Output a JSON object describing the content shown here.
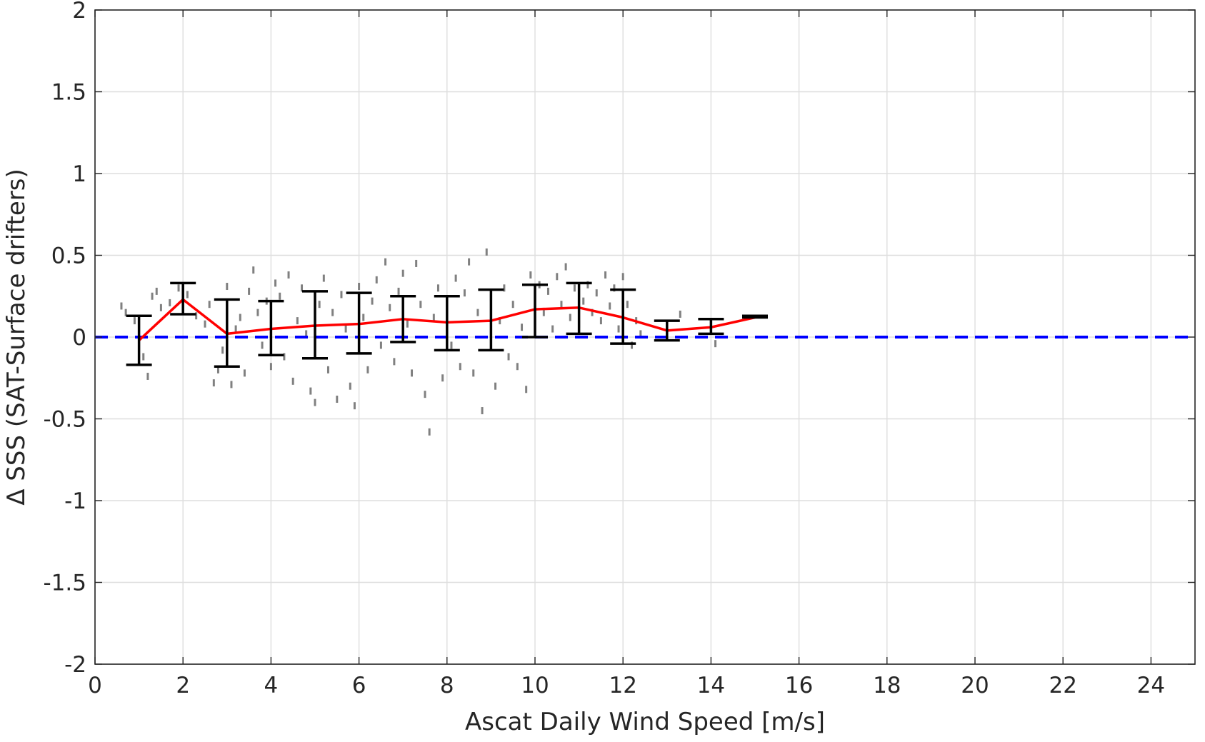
{
  "chart_data": {
    "type": "scatter",
    "title": "",
    "xlabel": "Ascat Daily Wind Speed [m/s]",
    "ylabel": "Δ SSS (SAT-Surface drifters)",
    "xlim": [
      0,
      25
    ],
    "ylim": [
      -2,
      2
    ],
    "x_ticks": [
      0,
      2,
      4,
      6,
      8,
      10,
      12,
      14,
      16,
      18,
      20,
      22,
      24
    ],
    "y_ticks": [
      -2,
      -1.5,
      -1,
      -0.5,
      0,
      0.5,
      1,
      1.5,
      2
    ],
    "y_tick_labels": [
      "-2",
      "-1.5",
      "-1",
      "-0.5",
      "0",
      "0.5",
      "1",
      "1.5",
      "2"
    ],
    "grid": true,
    "legend": "none",
    "reference_line": {
      "y": 0,
      "style": "dashed",
      "color": "#0000ff"
    },
    "binned_mean": {
      "color": "#ff0000",
      "x": [
        1,
        2,
        3,
        4,
        5,
        6,
        7,
        8,
        9,
        10,
        11,
        12,
        13,
        14,
        15
      ],
      "y": [
        -0.02,
        0.23,
        0.02,
        0.05,
        0.07,
        0.08,
        0.11,
        0.09,
        0.1,
        0.17,
        0.18,
        0.12,
        0.04,
        0.06,
        0.12
      ],
      "lower": [
        -0.17,
        0.14,
        -0.18,
        -0.11,
        -0.13,
        -0.1,
        -0.03,
        -0.08,
        -0.08,
        0.0,
        0.02,
        -0.04,
        -0.02,
        0.02,
        0.12
      ],
      "upper": [
        0.13,
        0.33,
        0.23,
        0.22,
        0.28,
        0.27,
        0.25,
        0.25,
        0.29,
        0.32,
        0.33,
        0.29,
        0.1,
        0.11,
        0.13
      ]
    },
    "scatter_points": {
      "color": "#808080",
      "points": [
        [
          0.6,
          0.19
        ],
        [
          0.7,
          0.15
        ],
        [
          0.9,
          0.1
        ],
        [
          1.1,
          -0.12
        ],
        [
          1.2,
          -0.24
        ],
        [
          1.3,
          0.25
        ],
        [
          1.4,
          0.28
        ],
        [
          1.5,
          0.18
        ],
        [
          1.7,
          0.21
        ],
        [
          1.9,
          0.3
        ],
        [
          2.1,
          0.26
        ],
        [
          2.3,
          0.13
        ],
        [
          2.5,
          0.08
        ],
        [
          2.6,
          0.2
        ],
        [
          2.7,
          -0.28
        ],
        [
          2.8,
          -0.2
        ],
        [
          2.9,
          -0.08
        ],
        [
          3.0,
          0.31
        ],
        [
          3.1,
          -0.29
        ],
        [
          3.2,
          0.05
        ],
        [
          3.3,
          0.12
        ],
        [
          3.4,
          -0.22
        ],
        [
          3.5,
          0.28
        ],
        [
          3.6,
          0.41
        ],
        [
          3.7,
          0.15
        ],
        [
          3.8,
          -0.05
        ],
        [
          3.9,
          0.22
        ],
        [
          4.0,
          -0.18
        ],
        [
          4.1,
          0.33
        ],
        [
          4.2,
          0.25
        ],
        [
          4.3,
          -0.12
        ],
        [
          4.4,
          0.38
        ],
        [
          4.5,
          -0.27
        ],
        [
          4.6,
          0.1
        ],
        [
          4.7,
          0.3
        ],
        [
          4.8,
          0.02
        ],
        [
          4.9,
          -0.33
        ],
        [
          5.0,
          -0.4
        ],
        [
          5.1,
          0.2
        ],
        [
          5.2,
          0.36
        ],
        [
          5.3,
          -0.2
        ],
        [
          5.4,
          0.15
        ],
        [
          5.5,
          -0.38
        ],
        [
          5.6,
          0.26
        ],
        [
          5.7,
          0.05
        ],
        [
          5.8,
          -0.3
        ],
        [
          5.9,
          -0.42
        ],
        [
          6.0,
          0.31
        ],
        [
          6.1,
          0.12
        ],
        [
          6.2,
          -0.2
        ],
        [
          6.3,
          0.22
        ],
        [
          6.4,
          0.35
        ],
        [
          6.5,
          -0.05
        ],
        [
          6.6,
          0.46
        ],
        [
          6.7,
          0.18
        ],
        [
          6.8,
          -0.15
        ],
        [
          6.9,
          0.28
        ],
        [
          7.0,
          0.39
        ],
        [
          7.1,
          0.08
        ],
        [
          7.2,
          -0.22
        ],
        [
          7.3,
          0.45
        ],
        [
          7.4,
          0.2
        ],
        [
          7.5,
          -0.35
        ],
        [
          7.6,
          -0.58
        ],
        [
          7.7,
          0.12
        ],
        [
          7.8,
          0.3
        ],
        [
          7.9,
          -0.25
        ],
        [
          8.0,
          0.21
        ],
        [
          8.1,
          -0.05
        ],
        [
          8.2,
          0.36
        ],
        [
          8.3,
          -0.18
        ],
        [
          8.4,
          0.27
        ],
        [
          8.5,
          0.46
        ],
        [
          8.6,
          -0.22
        ],
        [
          8.7,
          0.15
        ],
        [
          8.8,
          -0.45
        ],
        [
          8.9,
          0.52
        ],
        [
          9.0,
          0.24
        ],
        [
          9.1,
          -0.3
        ],
        [
          9.2,
          0.1
        ],
        [
          9.3,
          0.3
        ],
        [
          9.4,
          -0.12
        ],
        [
          9.5,
          0.2
        ],
        [
          9.6,
          -0.18
        ],
        [
          9.7,
          0.06
        ],
        [
          9.8,
          -0.32
        ],
        [
          9.9,
          0.38
        ],
        [
          10.0,
          0.24
        ],
        [
          10.1,
          0.32
        ],
        [
          10.2,
          0.15
        ],
        [
          10.3,
          0.28
        ],
        [
          10.4,
          0.05
        ],
        [
          10.5,
          0.37
        ],
        [
          10.6,
          0.2
        ],
        [
          10.7,
          0.43
        ],
        [
          10.8,
          0.12
        ],
        [
          10.9,
          0.3
        ],
        [
          11.0,
          0.08
        ],
        [
          11.1,
          0.22
        ],
        [
          11.2,
          0.32
        ],
        [
          11.3,
          0.15
        ],
        [
          11.4,
          0.27
        ],
        [
          11.5,
          0.1
        ],
        [
          11.6,
          0.38
        ],
        [
          11.7,
          0.19
        ],
        [
          11.8,
          0.3
        ],
        [
          11.9,
          0.05
        ],
        [
          12.0,
          0.37
        ],
        [
          12.1,
          0.2
        ],
        [
          12.2,
          -0.05
        ],
        [
          12.3,
          0.1
        ],
        [
          12.4,
          0.02
        ],
        [
          13.0,
          0.08
        ],
        [
          13.3,
          0.14
        ],
        [
          14.0,
          0.05
        ],
        [
          14.1,
          -0.04
        ]
      ]
    }
  }
}
